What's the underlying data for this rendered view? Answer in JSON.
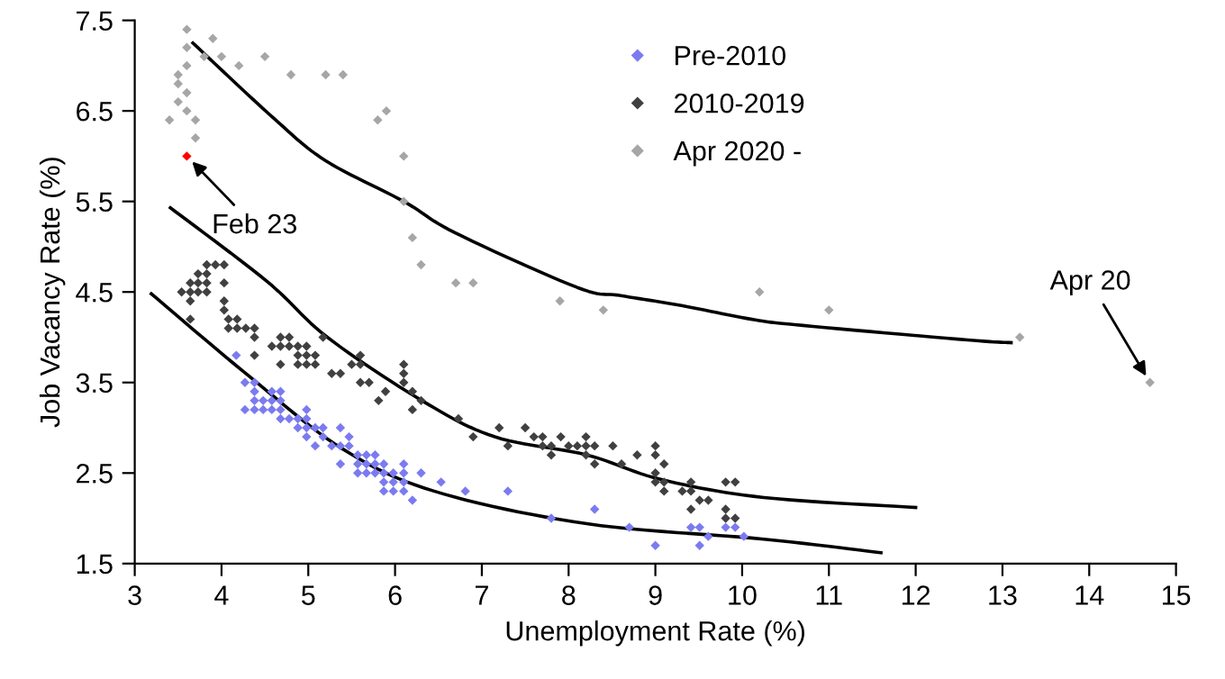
{
  "chart_data": {
    "type": "scatter",
    "xlabel": "Unemployment Rate (%)",
    "ylabel": "Job Vacancy Rate (%)",
    "xlim": [
      3,
      15
    ],
    "xticks": [
      3,
      4,
      5,
      6,
      7,
      8,
      9,
      10,
      11,
      12,
      13,
      14,
      15
    ],
    "ylim": [
      1.5,
      7.5
    ],
    "yticks": [
      1.5,
      2.5,
      3.5,
      4.5,
      5.5,
      6.5,
      7.5
    ],
    "grid": false,
    "legend": "top",
    "marker": "diamond",
    "series": [
      {
        "name": "Pre-2010",
        "color": "#7b7bf0",
        "x": [
          4.17,
          4.27,
          4.38,
          4.38,
          4.58,
          4.68,
          4.38,
          4.48,
          4.58,
          4.68,
          4.27,
          4.38,
          4.48,
          4.58,
          4.68,
          4.98,
          4.68,
          4.78,
          4.88,
          4.98,
          4.88,
          4.98,
          5.08,
          5.17,
          5.37,
          4.98,
          5.17,
          5.47,
          5.08,
          5.27,
          5.37,
          5.47,
          5.57,
          5.67,
          5.77,
          5.37,
          5.57,
          5.67,
          5.77,
          5.87,
          6.1,
          5.57,
          5.67,
          5.77,
          5.87,
          5.98,
          6.1,
          6.3,
          5.87,
          5.98,
          6.1,
          6.53,
          5.87,
          5.98,
          6.1,
          6.81,
          7.3,
          6.2,
          8.3,
          7.8,
          8.7,
          9.41,
          9.51,
          9.81,
          9.92,
          9.61,
          10.02,
          9.0,
          9.51
        ],
        "values": [
          3.8,
          3.5,
          3.5,
          3.4,
          3.4,
          3.4,
          3.3,
          3.3,
          3.3,
          3.3,
          3.2,
          3.2,
          3.2,
          3.2,
          3.2,
          3.2,
          3.1,
          3.1,
          3.1,
          3.1,
          3.0,
          3.0,
          3.0,
          3.0,
          3.0,
          2.9,
          2.9,
          2.9,
          2.8,
          2.8,
          2.8,
          2.8,
          2.7,
          2.7,
          2.7,
          2.6,
          2.6,
          2.6,
          2.6,
          2.6,
          2.6,
          2.5,
          2.5,
          2.5,
          2.5,
          2.5,
          2.5,
          2.5,
          2.4,
          2.4,
          2.4,
          2.4,
          2.3,
          2.3,
          2.3,
          2.3,
          2.3,
          2.2,
          2.1,
          2.0,
          1.9,
          1.9,
          1.9,
          1.9,
          1.9,
          1.8,
          1.8,
          1.7,
          1.7
        ]
      },
      {
        "name": "2010-2019",
        "color": "#404040",
        "x": [
          3.83,
          3.93,
          4.03,
          3.73,
          3.83,
          3.64,
          3.73,
          3.83,
          4.03,
          3.54,
          3.64,
          3.73,
          3.83,
          3.64,
          4.03,
          4.03,
          3.64,
          4.08,
          4.18,
          4.08,
          4.18,
          4.28,
          4.38,
          4.38,
          4.68,
          4.78,
          5.17,
          4.58,
          4.68,
          4.78,
          4.88,
          4.98,
          4.38,
          4.88,
          4.98,
          5.08,
          5.6,
          4.68,
          4.88,
          4.98,
          5.08,
          5.5,
          5.6,
          6.1,
          5.27,
          5.37,
          6.1,
          5.6,
          5.7,
          6.1,
          5.89,
          6.2,
          5.81,
          6.3,
          6.2,
          6.73,
          7.2,
          7.5,
          6.9,
          7.6,
          7.7,
          7.91,
          8.2,
          7.3,
          7.7,
          7.8,
          8.0,
          8.1,
          8.2,
          8.3,
          8.51,
          9.0,
          7.8,
          8.2,
          8.79,
          9.0,
          8.3,
          8.61,
          9.1,
          9.0,
          9.0,
          9.1,
          9.41,
          9.81,
          9.92,
          9.1,
          9.31,
          9.41,
          9.51,
          9.61,
          9.41,
          9.81,
          9.81,
          9.92
        ],
        "values": [
          4.8,
          4.8,
          4.8,
          4.7,
          4.7,
          4.6,
          4.6,
          4.6,
          4.6,
          4.5,
          4.5,
          4.5,
          4.5,
          4.4,
          4.4,
          4.3,
          4.2,
          4.2,
          4.2,
          4.1,
          4.1,
          4.1,
          4.1,
          4.0,
          4.0,
          4.0,
          4.0,
          3.9,
          3.9,
          3.9,
          3.9,
          3.9,
          3.8,
          3.8,
          3.8,
          3.8,
          3.8,
          3.7,
          3.7,
          3.7,
          3.7,
          3.7,
          3.7,
          3.7,
          3.6,
          3.6,
          3.6,
          3.5,
          3.5,
          3.5,
          3.4,
          3.4,
          3.3,
          3.3,
          3.2,
          3.1,
          3.0,
          3.0,
          2.9,
          2.9,
          2.9,
          2.9,
          2.9,
          2.8,
          2.8,
          2.8,
          2.8,
          2.8,
          2.8,
          2.8,
          2.8,
          2.8,
          2.7,
          2.7,
          2.7,
          2.7,
          2.6,
          2.6,
          2.6,
          2.5,
          2.4,
          2.4,
          2.4,
          2.4,
          2.4,
          2.3,
          2.3,
          2.3,
          2.2,
          2.2,
          2.1,
          2.1,
          2.0,
          2.0
        ]
      },
      {
        "name": "Apr 2020 -",
        "color": "#a6a6a6",
        "x": [
          3.6,
          3.6,
          3.9,
          3.8,
          4.0,
          3.6,
          4.2,
          4.5,
          3.5,
          3.5,
          3.6,
          3.5,
          3.6,
          3.4,
          3.7,
          3.7,
          4.8,
          5.2,
          5.4,
          5.8,
          5.9,
          6.1,
          6.1,
          6.2,
          6.3,
          6.7,
          6.9,
          7.9,
          8.4,
          10.2,
          11.0,
          13.2,
          14.7
        ],
        "values": [
          7.4,
          7.2,
          7.3,
          7.1,
          7.1,
          7.0,
          7.0,
          7.1,
          6.9,
          6.8,
          6.7,
          6.6,
          6.5,
          6.4,
          6.4,
          6.2,
          6.9,
          6.9,
          6.9,
          6.4,
          6.5,
          6.0,
          5.5,
          5.1,
          4.8,
          4.6,
          4.6,
          4.4,
          4.3,
          4.5,
          4.3,
          4.0,
          3.5
        ]
      },
      {
        "color": "#ff0000",
        "x": [
          3.6
        ],
        "values": [
          6.0
        ]
      },
      {
        "color": "#000000",
        "type": "line",
        "marker": "none",
        "x": [
          3.67,
          4.6,
          5.2,
          6.1,
          6.7,
          8.1,
          8.6,
          9.3,
          10.1,
          10.7,
          12.6,
          13.1
        ],
        "values": [
          7.25,
          6.42,
          5.95,
          5.5,
          5.15,
          4.55,
          4.46,
          4.35,
          4.2,
          4.13,
          3.97,
          3.94
        ]
      },
      {
        "color": "#000000",
        "type": "line",
        "marker": "none",
        "x": [
          3.41,
          4.52,
          5.22,
          6.31,
          7.15,
          8.21,
          9.06,
          10.25,
          12.0
        ],
        "values": [
          5.43,
          4.62,
          4.0,
          3.3,
          2.9,
          2.7,
          2.43,
          2.23,
          2.12
        ]
      },
      {
        "color": "#000000",
        "type": "line",
        "marker": "none",
        "x": [
          3.19,
          4.33,
          5.39,
          6.45,
          8.21,
          10.25,
          11.6
        ],
        "values": [
          4.48,
          3.56,
          2.77,
          2.3,
          1.94,
          1.77,
          1.62
        ]
      }
    ],
    "annotations": [
      {
        "text": "Feb 23",
        "x": 3.6,
        "y": 6.0
      },
      {
        "text": "Apr 20",
        "x": 14.7,
        "y": 3.5
      }
    ]
  }
}
